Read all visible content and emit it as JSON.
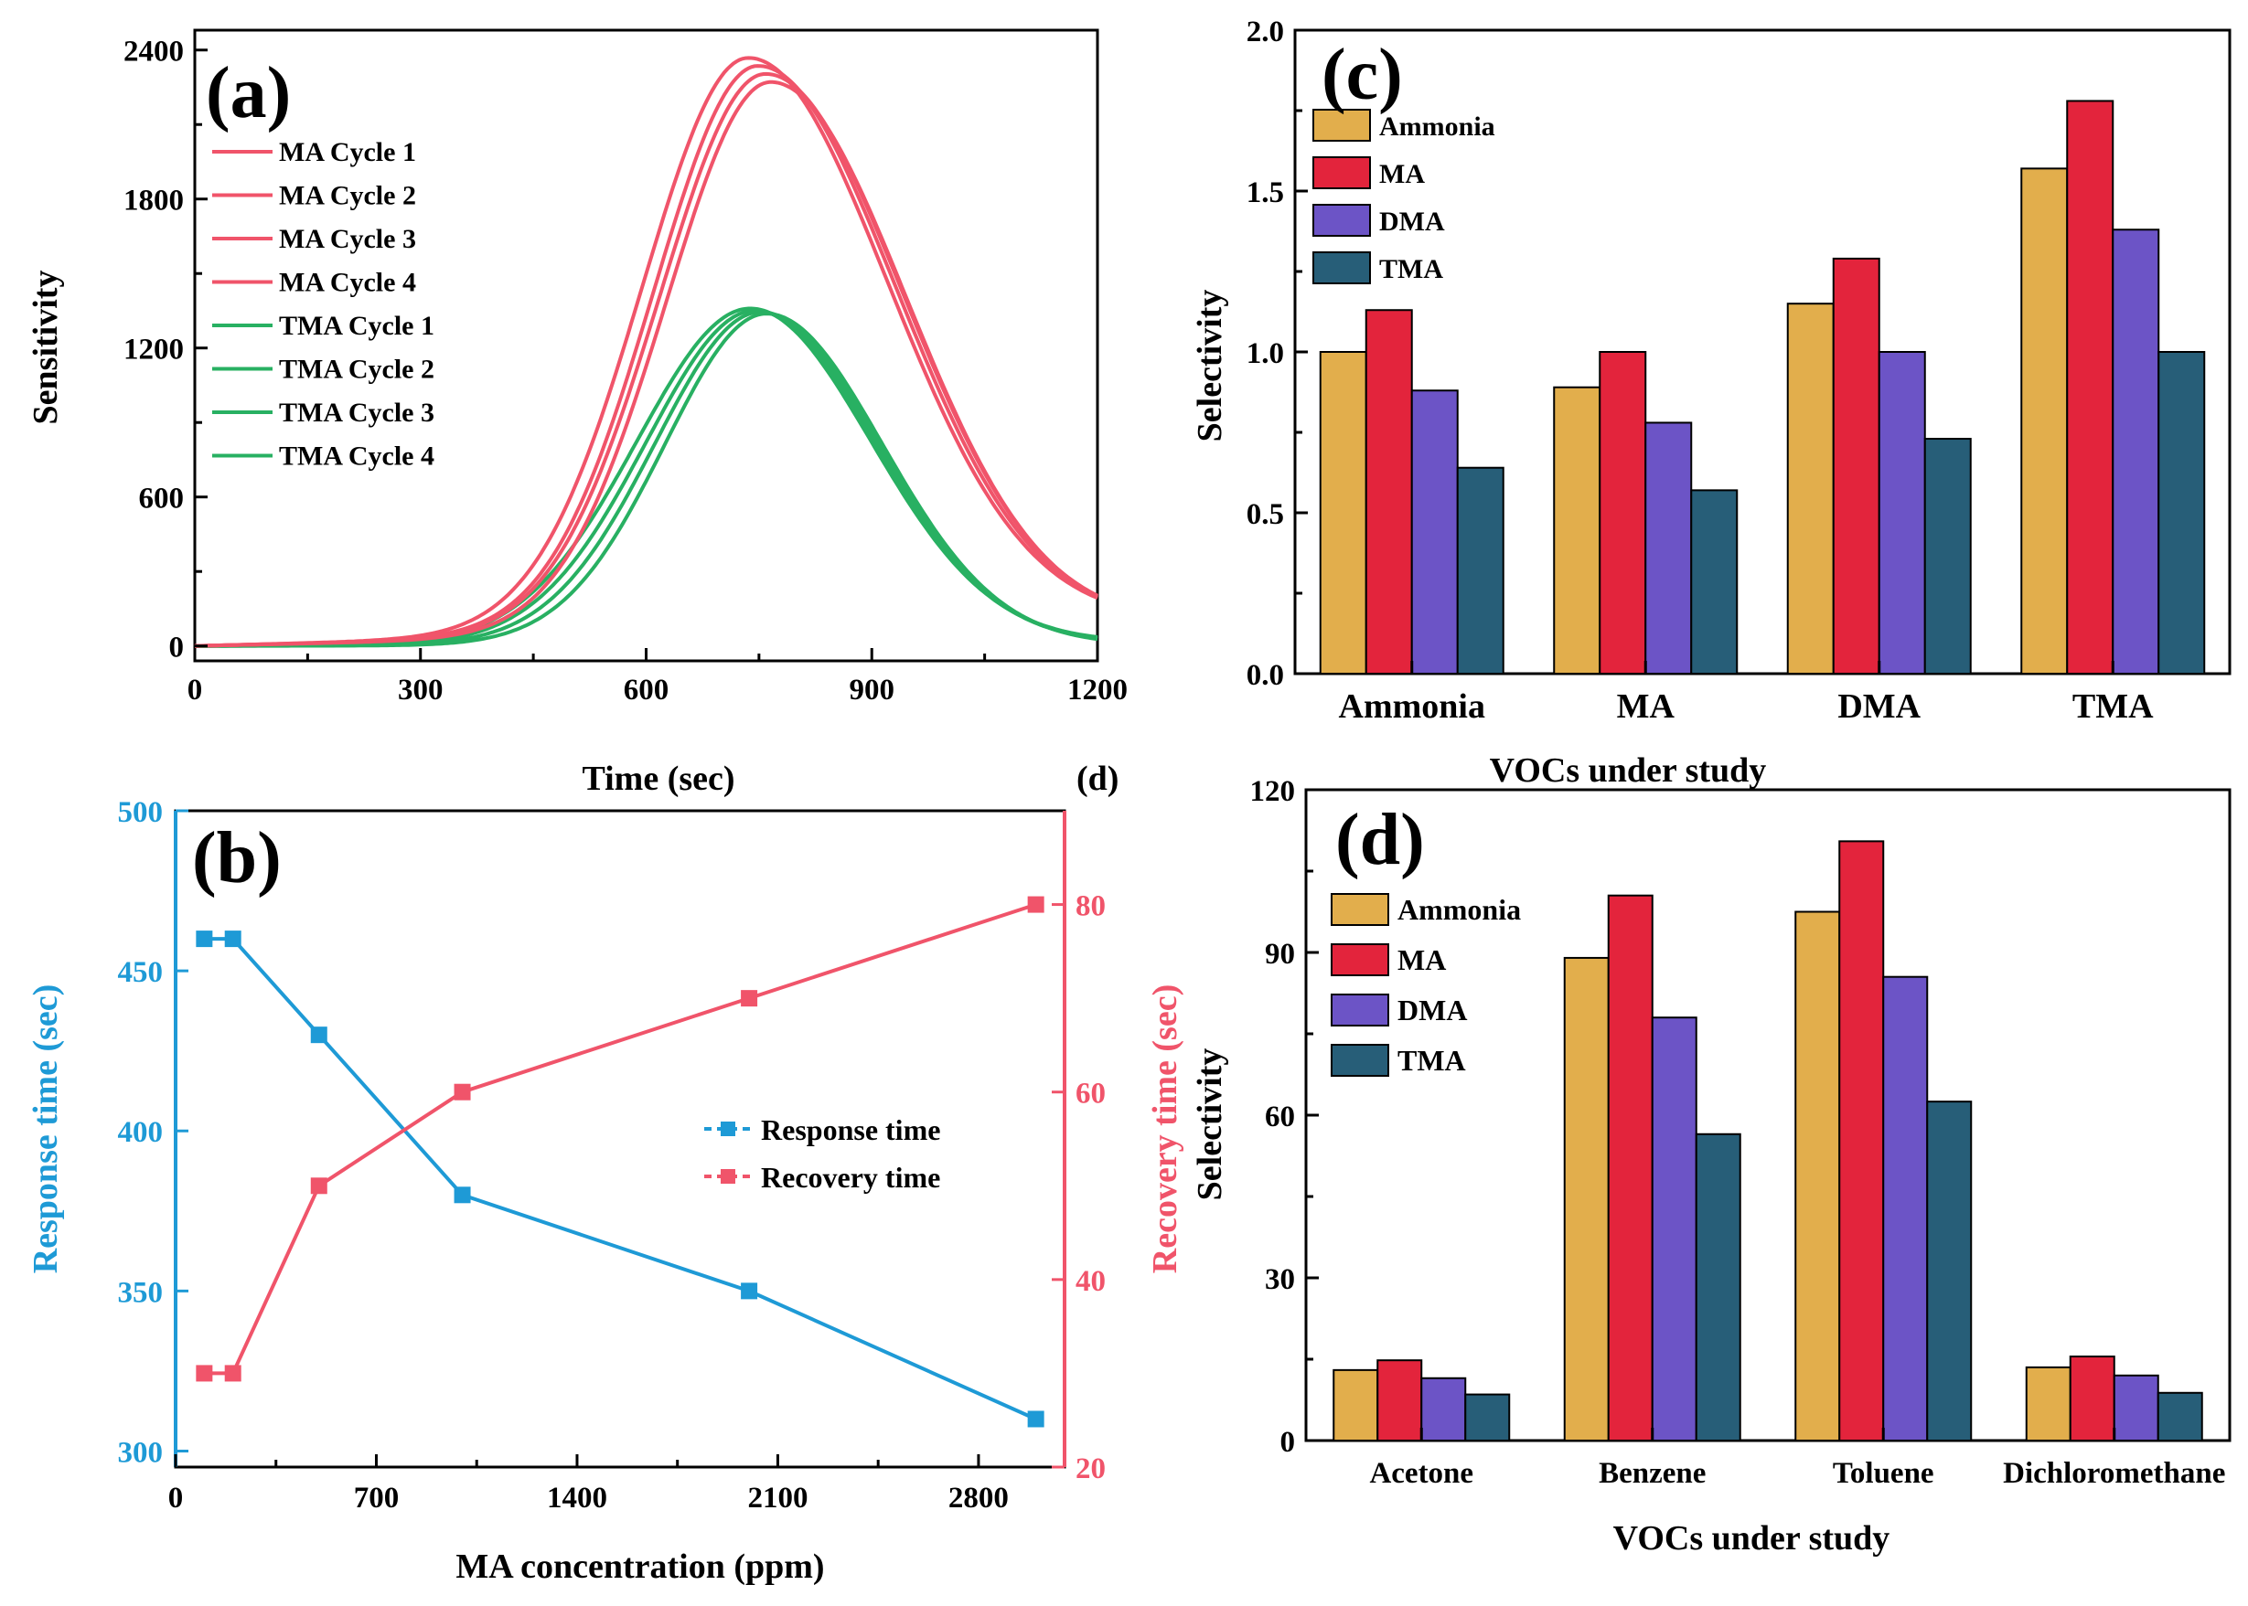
{
  "chart_data": [
    {
      "id": "a",
      "panel_label": "(a)",
      "type": "line",
      "xlabel": "Time (sec)",
      "ylabel": "Sensitivity",
      "xlim": [
        0,
        1200
      ],
      "ylim": [
        -60,
        2480
      ],
      "xticks": [
        "0",
        "300",
        "600",
        "900",
        "1200"
      ],
      "yticks": [
        "0",
        "600",
        "1200",
        "1800",
        "2400"
      ],
      "series": [
        {
          "name": "MA Cycle 1",
          "color": "#F0546A",
          "peak": 2310,
          "center": 735,
          "sigma_left": 140,
          "sigma_right": 185,
          "baseline_end": 95
        },
        {
          "name": "MA Cycle 2",
          "color": "#F0546A",
          "peak": 2280,
          "center": 748,
          "sigma_left": 138,
          "sigma_right": 183,
          "baseline_end": 90
        },
        {
          "name": "MA Cycle 3",
          "color": "#F0546A",
          "peak": 2250,
          "center": 758,
          "sigma_left": 140,
          "sigma_right": 182,
          "baseline_end": 85
        },
        {
          "name": "MA Cycle 4",
          "color": "#F0546A",
          "peak": 2220,
          "center": 765,
          "sigma_left": 138,
          "sigma_right": 180,
          "baseline_end": 80
        },
        {
          "name": "TMA Cycle 1",
          "color": "#28B062",
          "peak": 1350,
          "center": 738,
          "sigma_left": 150,
          "sigma_right": 160,
          "baseline_end": 15
        },
        {
          "name": "TMA Cycle 2",
          "color": "#28B062",
          "peak": 1345,
          "center": 745,
          "sigma_left": 145,
          "sigma_right": 158,
          "baseline_end": 10
        },
        {
          "name": "TMA Cycle 3",
          "color": "#28B062",
          "peak": 1340,
          "center": 752,
          "sigma_left": 140,
          "sigma_right": 156,
          "baseline_end": 8
        },
        {
          "name": "TMA Cycle 4",
          "color": "#28B062",
          "peak": 1335,
          "center": 760,
          "sigma_left": 135,
          "sigma_right": 154,
          "baseline_end": 5
        }
      ]
    },
    {
      "id": "b",
      "panel_label": "(b)",
      "type": "line",
      "xlabel": "MA concentration (ppm)",
      "ylabel": "Response time (sec)",
      "ylabel_right": "Recovery time (sec)",
      "xlim": [
        0,
        3100
      ],
      "ylim": [
        295,
        500
      ],
      "ylim_right": [
        20,
        90
      ],
      "xticks": [
        "0",
        "700",
        "1400",
        "2100",
        "2800"
      ],
      "yticks": [
        "300",
        "350",
        "400",
        "450",
        "500"
      ],
      "yticks_right": [
        "20",
        "40",
        "60",
        "80"
      ],
      "x": [
        100,
        200,
        500,
        1000,
        2000,
        3000
      ],
      "series": [
        {
          "name": "Response time",
          "axis": "left",
          "color": "#1E9AD6",
          "values": [
            460,
            460,
            430,
            380,
            350,
            310
          ]
        },
        {
          "name": "Recovery time",
          "axis": "right",
          "color": "#F0546A",
          "values": [
            30,
            30,
            50,
            60,
            70,
            80
          ]
        }
      ]
    },
    {
      "id": "c",
      "panel_label": "(c)",
      "type": "bar",
      "xlabel": "VOCs under study",
      "ylabel": "Selectivity",
      "ylim": [
        0,
        2.0
      ],
      "yticks": [
        "0.0",
        "0.5",
        "1.0",
        "1.5",
        "2.0"
      ],
      "categories": [
        "Ammonia",
        "MA",
        "DMA",
        "TMA"
      ],
      "series": [
        {
          "name": "Ammonia",
          "color": "#E2AE4C",
          "values": [
            1.0,
            0.89,
            1.15,
            1.57
          ]
        },
        {
          "name": "MA",
          "color": "#E3243C",
          "values": [
            1.13,
            1.0,
            1.29,
            1.78
          ]
        },
        {
          "name": "DMA",
          "color": "#6C54C6",
          "values": [
            0.88,
            0.78,
            1.0,
            1.38
          ]
        },
        {
          "name": "TMA",
          "color": "#275E78",
          "values": [
            0.64,
            0.57,
            0.73,
            1.0
          ]
        }
      ]
    },
    {
      "id": "d",
      "panel_label": "(d)",
      "type": "bar",
      "xlabel": "VOCs under study",
      "ylabel": "Selectivity",
      "ylim": [
        0,
        120
      ],
      "yticks": [
        "0",
        "30",
        "60",
        "90",
        "120"
      ],
      "categories": [
        "Acetone",
        "Benzene",
        "Toluene",
        "Dichloromethane"
      ],
      "series": [
        {
          "name": "Ammonia",
          "color": "#E2AE4C",
          "values": [
            13,
            89,
            97.5,
            13.5
          ]
        },
        {
          "name": "MA",
          "color": "#E3243C",
          "values": [
            14.8,
            100.5,
            110.5,
            15.5
          ]
        },
        {
          "name": "DMA",
          "color": "#6C54C6",
          "values": [
            11.5,
            78,
            85.5,
            12
          ]
        },
        {
          "name": "TMA",
          "color": "#275E78",
          "values": [
            8.5,
            56.5,
            62.5,
            8.8
          ]
        }
      ]
    }
  ],
  "stray_label": "(d)"
}
